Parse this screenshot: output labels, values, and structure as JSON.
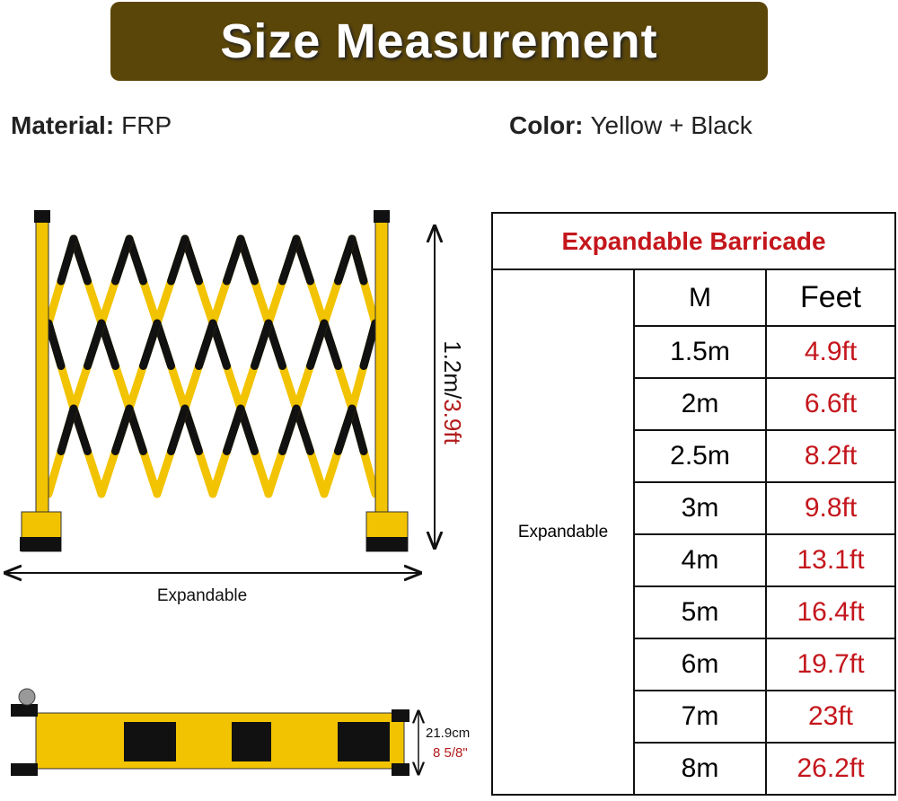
{
  "header": {
    "title": "Size Measurement"
  },
  "specs": {
    "material": {
      "label": "Material:",
      "value": "FRP"
    },
    "color": {
      "label": "Color:",
      "value": "Yellow + Black"
    }
  },
  "diagram": {
    "height_metric": "1.2m/",
    "height_feet": "3.9ft",
    "width_label": "Expandable",
    "folded_depth_metric": "21.9cm",
    "folded_depth_inches": "8 5/8\""
  },
  "table": {
    "title": "Expandable Barricade",
    "row_label": "Expandable",
    "headers": [
      "M",
      "Feet"
    ],
    "rows": [
      [
        "1.5m",
        "4.9ft"
      ],
      [
        "2m",
        "6.6ft"
      ],
      [
        "2.5m",
        "8.2ft"
      ],
      [
        "3m",
        "9.8ft"
      ],
      [
        "4m",
        "13.1ft"
      ],
      [
        "5m",
        "16.4ft"
      ],
      [
        "6m",
        "19.7ft"
      ],
      [
        "7m",
        "23ft"
      ],
      [
        "8m",
        "26.2ft"
      ]
    ]
  }
}
